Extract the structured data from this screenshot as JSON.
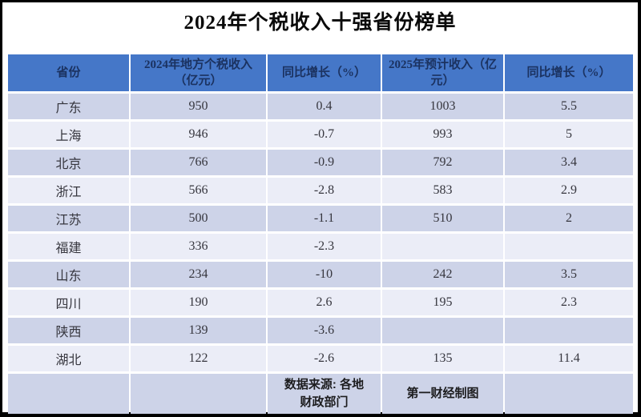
{
  "title": "2024年个税收入十强省份榜单",
  "colors": {
    "header_bg": "#4577c8",
    "header_text": "#1b3260",
    "row_odd": "#cdd3e8",
    "row_even": "#ebedf7",
    "page_border": "#000000"
  },
  "chart_data": {
    "type": "table",
    "title": "2024年个税收入十强省份榜单",
    "columns": [
      "省份",
      "2024年地方个税收入（亿元）",
      "同比增长（%）",
      "2025年预计收入（亿元）",
      "同比增长（%）"
    ],
    "rows": [
      [
        "广东",
        950,
        0.4,
        1003,
        5.5
      ],
      [
        "上海",
        946,
        -0.7,
        993,
        5
      ],
      [
        "北京",
        766,
        -0.9,
        792,
        3.4
      ],
      [
        "浙江",
        566,
        -2.8,
        583,
        2.9
      ],
      [
        "江苏",
        500,
        -1.1,
        510,
        2
      ],
      [
        "福建",
        336,
        -2.3,
        "",
        ""
      ],
      [
        "山东",
        234,
        -10,
        242,
        3.5
      ],
      [
        "四川",
        190,
        2.6,
        195,
        2.3
      ],
      [
        "陕西",
        139,
        -3.6,
        "",
        ""
      ],
      [
        "湖北",
        122,
        -2.6,
        135,
        11.4
      ]
    ],
    "footer": {
      "source": "数据来源: 各地财政部门",
      "credit": "第一财经制图"
    }
  }
}
